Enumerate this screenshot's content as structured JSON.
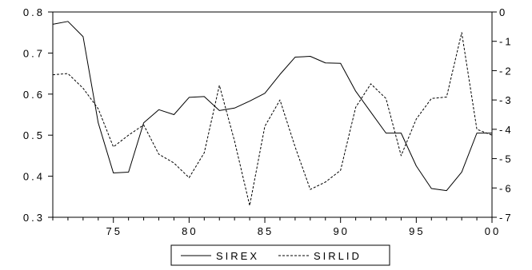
{
  "chart_data": {
    "type": "line",
    "x": [
      1971,
      1972,
      1973,
      1974,
      1975,
      1976,
      1977,
      1978,
      1979,
      1980,
      1981,
      1982,
      1983,
      1984,
      1985,
      1986,
      1987,
      1988,
      1989,
      1990,
      1991,
      1992,
      1993,
      1994,
      1995,
      1996,
      1997,
      1998,
      1999,
      2000
    ],
    "xlim": [
      1971,
      2000
    ],
    "x_ticks": [
      1975,
      1980,
      1985,
      1990,
      1995,
      2000
    ],
    "x_tick_labels": [
      "75",
      "80",
      "85",
      "90",
      "95",
      "00"
    ],
    "y_left": {
      "lim": [
        0.3,
        0.8
      ],
      "ticks": [
        0.3,
        0.4,
        0.5,
        0.6,
        0.7,
        0.8
      ],
      "tick_labels": [
        "0.3",
        "0.4",
        "0.5",
        "0.6",
        "0.7",
        "0.8"
      ]
    },
    "y_right": {
      "lim": [
        -7,
        0
      ],
      "ticks": [
        -7,
        -6,
        -5,
        -4,
        -3,
        -2,
        -1,
        0
      ],
      "tick_labels": [
        "-7",
        "-6",
        "-5",
        "-4",
        "-3",
        "-2",
        "-1",
        "0"
      ]
    },
    "series": [
      {
        "name": "SIREX",
        "axis": "left",
        "style": "solid",
        "color": "#000000",
        "values": [
          0.77,
          0.777,
          0.74,
          0.53,
          0.408,
          0.41,
          0.53,
          0.562,
          0.55,
          0.592,
          0.594,
          0.56,
          0.566,
          0.583,
          0.602,
          0.648,
          0.69,
          0.692,
          0.676,
          0.675,
          0.607,
          0.556,
          0.505,
          0.505,
          0.425,
          0.37,
          0.365,
          0.41,
          0.505,
          0.505
        ]
      },
      {
        "name": "SIRLID",
        "axis": "right",
        "style": "dashed",
        "color": "#000000",
        "values": [
          -2.14,
          -2.1,
          -2.6,
          -3.3,
          -4.6,
          -4.2,
          -3.85,
          -4.85,
          -5.15,
          -5.65,
          -4.8,
          -2.5,
          -4.4,
          -6.6,
          -3.9,
          -3.0,
          -4.6,
          -6.05,
          -5.8,
          -5.4,
          -3.25,
          -2.45,
          -2.95,
          -4.9,
          -3.65,
          -2.95,
          -2.9,
          -0.7,
          -4.0,
          -4.2
        ]
      }
    ],
    "grid": false,
    "legend_position": "bottom-center",
    "title": "",
    "xlabel": "",
    "ylabel": ""
  }
}
